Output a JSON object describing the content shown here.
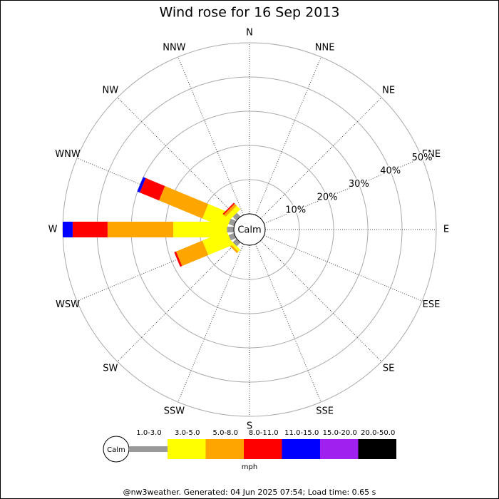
{
  "chart_data": {
    "type": "windrose",
    "title": "Wind rose for 16 Sep 2013",
    "directions": [
      "N",
      "NNE",
      "NE",
      "ENE",
      "E",
      "ESE",
      "SE",
      "SSE",
      "S",
      "SSW",
      "SW",
      "WSW",
      "W",
      "WNW",
      "NW",
      "NNW"
    ],
    "calm_label": "Calm",
    "unit": "mph",
    "ylim": [
      0,
      50
    ],
    "rticks": [
      {
        "value": 10,
        "label": "10%"
      },
      {
        "value": 20,
        "label": "20%"
      },
      {
        "value": 30,
        "label": "30%"
      },
      {
        "value": 40,
        "label": "40%"
      },
      {
        "value": 50,
        "label": "50%"
      }
    ],
    "series": [
      {
        "name": "1.0-3.0",
        "color": "#999999",
        "values": [
          0,
          0,
          0,
          0,
          0,
          0,
          0,
          0,
          0,
          0,
          1.5,
          1.7,
          2,
          1.7,
          1.5,
          0
        ]
      },
      {
        "name": "3.0-5.0",
        "color": "#ffff00",
        "values": [
          0,
          0,
          0,
          0,
          0,
          0,
          0,
          0,
          0,
          0,
          0.8,
          7.7,
          15.7,
          7.7,
          1.5,
          0
        ]
      },
      {
        "name": "5.0-8.0",
        "color": "#ffa500",
        "values": [
          0,
          0,
          0,
          0,
          0,
          0,
          0,
          0,
          0,
          0,
          0.6,
          8.3,
          19.2,
          13.7,
          0.8,
          0
        ]
      },
      {
        "name": "8.0-11.0",
        "color": "#ff0000",
        "values": [
          0,
          0,
          0,
          0,
          0,
          0,
          0,
          0,
          0,
          0,
          0,
          0.6,
          10.2,
          6.1,
          0.4,
          0
        ]
      },
      {
        "name": "11.0-15.0",
        "color": "#0000ff",
        "values": [
          0,
          0,
          0,
          0,
          0,
          0,
          0,
          0,
          0,
          0,
          0,
          0,
          2.9,
          0.8,
          0,
          0
        ]
      },
      {
        "name": "15.0-20.0",
        "color": "#a020f0",
        "values": [
          0,
          0,
          0,
          0,
          0,
          0,
          0,
          0,
          0,
          0,
          0,
          0,
          0,
          0,
          0,
          0
        ]
      },
      {
        "name": "20.0-50.0",
        "color": "#000000",
        "values": [
          0,
          0,
          0,
          0,
          0,
          0,
          0,
          0,
          0,
          0,
          0,
          0,
          0,
          0,
          0,
          0
        ]
      }
    ],
    "footer": "@nw3weather. Generated: 04 Jun 2025 07:54; Load time: 0.65 s"
  }
}
